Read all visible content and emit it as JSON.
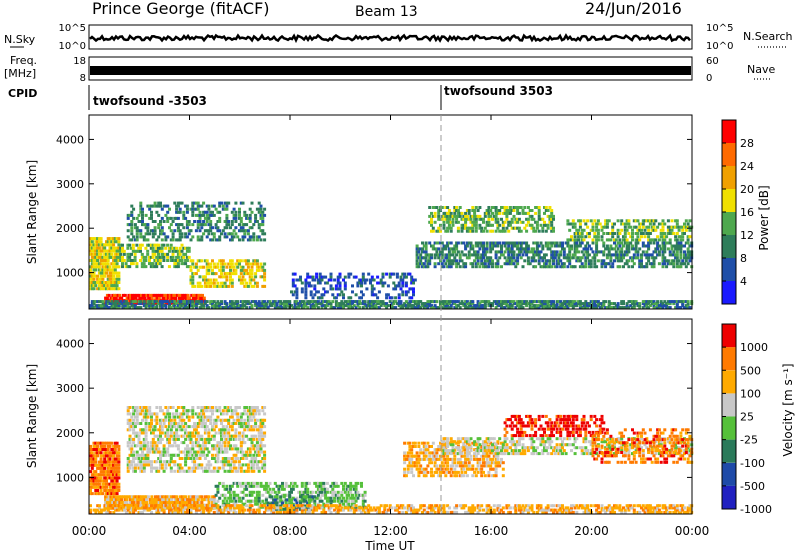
{
  "header": {
    "station": "Prince George (fitACF)",
    "beam": "Beam 13",
    "date": "24/Jun/2016"
  },
  "colors": {
    "power": [
      "#1a1aff",
      "#1f4fa8",
      "#2e7d5a",
      "#4ea84e",
      "#f0e000",
      "#f0a000",
      "#ff6a00",
      "#ff0000"
    ],
    "velocity": [
      "#ee0000",
      "#ff7a00",
      "#ffaa00",
      "#c8c8c8",
      "#55c03a",
      "#2a7a5a",
      "#1e4aa8",
      "#2020c0"
    ],
    "ground_scatter": "#c8c8c8"
  },
  "chart_data": [
    {
      "type": "line",
      "panel": "noise",
      "left_label": "N.Sky",
      "right_label": "N.Search",
      "left_ticks": [
        "10^5",
        "10^0"
      ],
      "right_ticks": [
        "10^5",
        "10^0"
      ],
      "note": "N.Sky and N.Search drawn as thick black traces near 10^2",
      "series": [
        {
          "name": "N.Sky",
          "approx_log_value": 2.3
        }
      ]
    },
    {
      "type": "line",
      "panel": "frequency",
      "left_label": "Freq.",
      "left_unit": "[MHz]",
      "right_label": "Nave",
      "left_ticks": [
        "18",
        "8"
      ],
      "right_ticks": [
        "60",
        "0"
      ],
      "ylim_left": [
        8,
        18
      ],
      "ylim_right": [
        0,
        60
      ],
      "series": [
        {
          "name": "Freq",
          "approx_value": 11
        }
      ]
    },
    {
      "type": "table",
      "panel": "cpid",
      "label": "CPID",
      "segments": [
        {
          "name": "twofsound -3503",
          "start_hour": 0
        },
        {
          "name": "twofsound 3503",
          "start_hour": 14
        }
      ]
    },
    {
      "type": "heatmap",
      "panel": "power",
      "ylabel": "Slant Range [km]",
      "ylim": [
        180,
        4550
      ],
      "yticks": [
        "1000",
        "2000",
        "3000",
        "4000"
      ],
      "xlim_hours": [
        0,
        24
      ],
      "colorbar": {
        "label": "Power [dB]",
        "ticks": [
          "4",
          "8",
          "12",
          "16",
          "20",
          "24",
          "28"
        ]
      },
      "regions": [
        {
          "t0": 0.0,
          "t1": 1.2,
          "r0": 600,
          "r1": 1800,
          "level": 4,
          "density": 0.85
        },
        {
          "t0": 0.6,
          "t1": 4.6,
          "r0": 280,
          "r1": 520,
          "level": 7,
          "density": 0.9
        },
        {
          "t0": 1.2,
          "t1": 4.0,
          "r0": 1100,
          "r1": 1650,
          "level": 3,
          "density": 0.6
        },
        {
          "t0": 4.0,
          "t1": 7.0,
          "r0": 650,
          "r1": 1300,
          "level": 4,
          "density": 0.55
        },
        {
          "t0": 1.5,
          "t1": 7.0,
          "r0": 1700,
          "r1": 2600,
          "level": 2,
          "density": 0.4
        },
        {
          "t0": 0.0,
          "t1": 24.0,
          "r0": 200,
          "r1": 380,
          "level": 2,
          "density": 0.7
        },
        {
          "t0": 13.0,
          "t1": 24.0,
          "r0": 1100,
          "r1": 1700,
          "level": 2,
          "density": 0.55
        },
        {
          "t0": 13.5,
          "t1": 18.5,
          "r0": 1900,
          "r1": 2500,
          "level": 3,
          "density": 0.5
        },
        {
          "t0": 19.0,
          "t1": 24.0,
          "r0": 1700,
          "r1": 2200,
          "level": 3,
          "density": 0.5
        },
        {
          "t0": 8.0,
          "t1": 13.0,
          "r0": 400,
          "r1": 1000,
          "level": 1,
          "density": 0.3
        }
      ]
    },
    {
      "type": "heatmap",
      "panel": "velocity",
      "ylabel": "Slant Range [km]",
      "ylim": [
        180,
        4550
      ],
      "yticks": [
        "1000",
        "2000",
        "3000",
        "4000"
      ],
      "xlim_hours": [
        0,
        24
      ],
      "xticks": [
        "00:00",
        "04:00",
        "08:00",
        "12:00",
        "16:00",
        "20:00",
        "00:00"
      ],
      "xlabel": "Time UT",
      "colorbar": {
        "label": "Velocity [m s⁻¹]",
        "ticks": [
          "1000",
          "500",
          "100",
          "25",
          "-25",
          "-100",
          "-500",
          "-1000"
        ]
      },
      "regions": [
        {
          "t0": 0.0,
          "t1": 1.2,
          "r0": 600,
          "r1": 1800,
          "level": 1,
          "density": 0.85
        },
        {
          "t0": 0.6,
          "t1": 5.0,
          "r0": 280,
          "r1": 600,
          "level": 2,
          "density": 0.9
        },
        {
          "t0": 1.5,
          "t1": 7.0,
          "r0": 1100,
          "r1": 2600,
          "level": 3,
          "density": 0.55
        },
        {
          "t0": 5.0,
          "t1": 11.0,
          "r0": 300,
          "r1": 900,
          "level": 4,
          "density": 0.5
        },
        {
          "t0": 7.0,
          "t1": 9.0,
          "r0": 250,
          "r1": 600,
          "level": 5,
          "density": 0.5
        },
        {
          "t0": 12.5,
          "t1": 16.5,
          "r0": 1000,
          "r1": 1800,
          "level": 2,
          "density": 0.55
        },
        {
          "t0": 16.5,
          "t1": 20.5,
          "r0": 1900,
          "r1": 2400,
          "level": 0,
          "density": 0.45
        },
        {
          "t0": 14.0,
          "t1": 24.0,
          "r0": 1500,
          "r1": 1900,
          "level": 3,
          "density": 0.5
        },
        {
          "t0": 0.0,
          "t1": 24.0,
          "r0": 200,
          "r1": 400,
          "level": 2,
          "density": 0.5
        },
        {
          "t0": 20.0,
          "t1": 24.0,
          "r0": 1300,
          "r1": 2100,
          "level": 1,
          "density": 0.35
        }
      ]
    }
  ]
}
